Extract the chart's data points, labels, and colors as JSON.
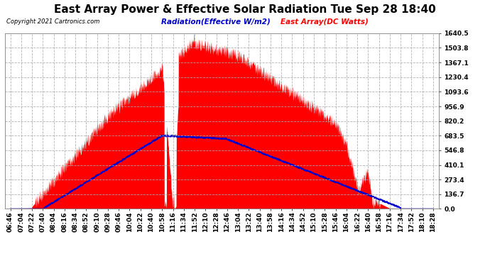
{
  "title": "East Array Power & Effective Solar Radiation Tue Sep 28 18:40",
  "copyright": "Copyright 2021 Cartronics.com",
  "legend_radiation": "Radiation(Effective W/m2)",
  "legend_array": "East Array(DC Watts)",
  "ymax": 1640.5,
  "yticks": [
    0.0,
    136.7,
    273.4,
    410.1,
    546.8,
    683.5,
    820.2,
    956.9,
    1093.6,
    1230.4,
    1367.1,
    1503.8,
    1640.5
  ],
  "background_color": "#ffffff",
  "plot_bg_color": "#ffffff",
  "grid_color": "#aaaaaa",
  "fill_color": "#ff0000",
  "line_color": "#0000cc",
  "title_fontsize": 11,
  "tick_fontsize": 6.5,
  "x_tick_labels": [
    "06:46",
    "07:04",
    "07:22",
    "07:40",
    "08:04",
    "08:16",
    "08:34",
    "08:52",
    "09:10",
    "09:28",
    "09:46",
    "10:04",
    "10:22",
    "10:40",
    "10:58",
    "11:16",
    "11:34",
    "11:52",
    "12:10",
    "12:28",
    "12:46",
    "13:04",
    "13:22",
    "13:40",
    "13:58",
    "14:16",
    "14:34",
    "14:52",
    "15:10",
    "15:28",
    "15:46",
    "16:04",
    "16:22",
    "16:40",
    "16:58",
    "17:16",
    "17:34",
    "17:52",
    "18:10",
    "18:28"
  ]
}
